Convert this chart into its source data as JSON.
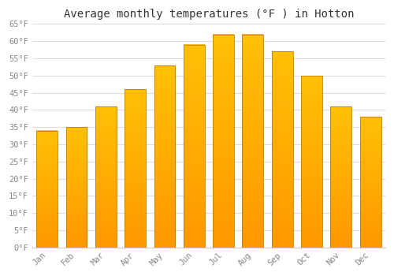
{
  "title": "Average monthly temperatures (°F ) in Hotton",
  "months": [
    "Jan",
    "Feb",
    "Mar",
    "Apr",
    "May",
    "Jun",
    "Jul",
    "Aug",
    "Sep",
    "Oct",
    "Nov",
    "Dec"
  ],
  "values": [
    34,
    35,
    41,
    46,
    53,
    59,
    62,
    62,
    57,
    50,
    41,
    38
  ],
  "bar_color_top": "#FFC107",
  "bar_color_bottom": "#FF9800",
  "bar_edge_color": "#C67A00",
  "ylim": [
    0,
    65
  ],
  "yticks": [
    0,
    5,
    10,
    15,
    20,
    25,
    30,
    35,
    40,
    45,
    50,
    55,
    60,
    65
  ],
  "ytick_labels": [
    "0°F",
    "5°F",
    "10°F",
    "15°F",
    "20°F",
    "25°F",
    "30°F",
    "35°F",
    "40°F",
    "45°F",
    "50°F",
    "55°F",
    "60°F",
    "65°F"
  ],
  "background_color": "#ffffff",
  "grid_color": "#dddddd",
  "title_fontsize": 10,
  "tick_fontsize": 7.5,
  "axis_label_color": "#888888",
  "title_color": "#333333",
  "bar_width": 0.72
}
